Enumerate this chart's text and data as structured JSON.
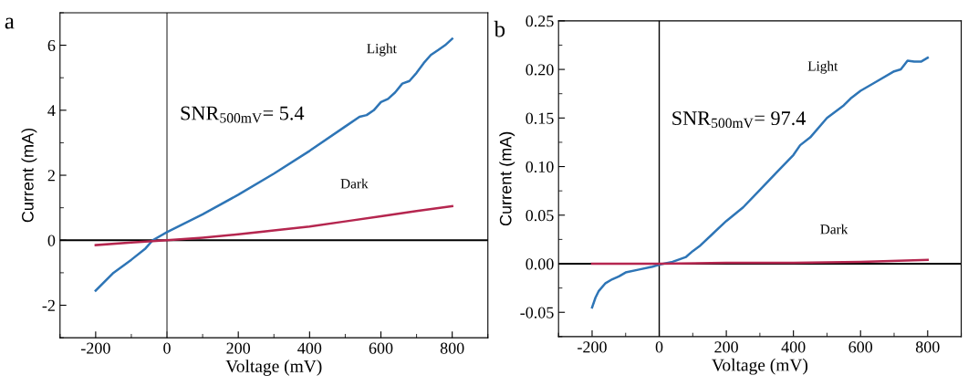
{
  "chart_data": [
    {
      "type": "line",
      "title": "a",
      "xlabel": "Voltage (mV)",
      "ylabel": "Current (mA)",
      "xlim": [
        -300,
        900
      ],
      "ylim": [
        -3,
        7
      ],
      "xticks": [
        -200,
        0,
        200,
        400,
        600,
        800
      ],
      "yticks": [
        -2,
        0,
        2,
        4,
        6
      ],
      "grid": false,
      "legend": false,
      "annotations": [
        "SNR$_{500mV}$= 5.4"
      ],
      "ref_lines": [
        {
          "axis": "x",
          "value": 0,
          "color": "#555555"
        },
        {
          "axis": "y",
          "value": 0,
          "color": "#000000"
        }
      ],
      "series": [
        {
          "name": "Light",
          "color": "#2e75b6",
          "x": [
            -200,
            -150,
            -100,
            -60,
            -40,
            0,
            100,
            200,
            300,
            400,
            500,
            540,
            560,
            580,
            600,
            620,
            640,
            660,
            680,
            700,
            720,
            740,
            760,
            780,
            800
          ],
          "values": [
            -1.55,
            -1.0,
            -0.6,
            -0.25,
            0,
            0.25,
            0.8,
            1.4,
            2.05,
            2.75,
            3.5,
            3.8,
            3.85,
            4.0,
            4.25,
            4.35,
            4.55,
            4.82,
            4.9,
            5.15,
            5.45,
            5.7,
            5.85,
            6.0,
            6.2
          ]
        },
        {
          "name": "Dark",
          "color": "#b5264f",
          "x": [
            -200,
            -100,
            0,
            100,
            200,
            300,
            400,
            500,
            600,
            700,
            800
          ],
          "values": [
            -0.15,
            -0.07,
            0,
            0.08,
            0.18,
            0.3,
            0.42,
            0.58,
            0.74,
            0.9,
            1.05
          ]
        }
      ]
    },
    {
      "type": "line",
      "title": "b",
      "xlabel": "Voltage (mV)",
      "ylabel": "Current (mA)",
      "xlim": [
        -300,
        900
      ],
      "ylim": [
        -0.075,
        0.25
      ],
      "xticks": [
        -200,
        0,
        200,
        400,
        600,
        800
      ],
      "yticks": [
        {
          "value": -0.05,
          "label": "-0.05"
        },
        {
          "value": 0,
          "label": "0.00"
        },
        {
          "value": 0.05,
          "label": "0.05"
        },
        {
          "value": 0.1,
          "label": "0.10"
        },
        {
          "value": 0.15,
          "label": "0.15"
        },
        {
          "value": 0.2,
          "label": "0.20"
        },
        {
          "value": 0.25,
          "label": "0.25"
        }
      ],
      "grid": false,
      "legend": false,
      "annotations": [
        "SNR$_{500mV}$= 97.4"
      ],
      "ref_lines": [
        {
          "axis": "x",
          "value": 0,
          "color": "#000000"
        },
        {
          "axis": "y",
          "value": 0,
          "color": "#000000"
        }
      ],
      "series": [
        {
          "name": "Light",
          "color": "#2e75b6",
          "x": [
            -200,
            -190,
            -180,
            -160,
            -140,
            -120,
            -100,
            -60,
            -20,
            0,
            40,
            80,
            100,
            120,
            160,
            200,
            250,
            300,
            350,
            400,
            420,
            450,
            500,
            550,
            570,
            600,
            640,
            700,
            720,
            740,
            760,
            780,
            800
          ],
          "values": [
            -0.045,
            -0.035,
            -0.028,
            -0.02,
            -0.016,
            -0.013,
            -0.009,
            -0.006,
            -0.003,
            -0.001,
            0.002,
            0.007,
            0.013,
            0.018,
            0.031,
            0.044,
            0.058,
            0.076,
            0.094,
            0.112,
            0.122,
            0.13,
            0.15,
            0.163,
            0.17,
            0.178,
            0.186,
            0.198,
            0.2,
            0.209,
            0.208,
            0.208,
            0.212
          ]
        },
        {
          "name": "Dark",
          "color": "#b5264f",
          "x": [
            -200,
            0,
            200,
            400,
            600,
            800
          ],
          "values": [
            0,
            0,
            0.001,
            0.001,
            0.002,
            0.004
          ]
        }
      ]
    }
  ]
}
